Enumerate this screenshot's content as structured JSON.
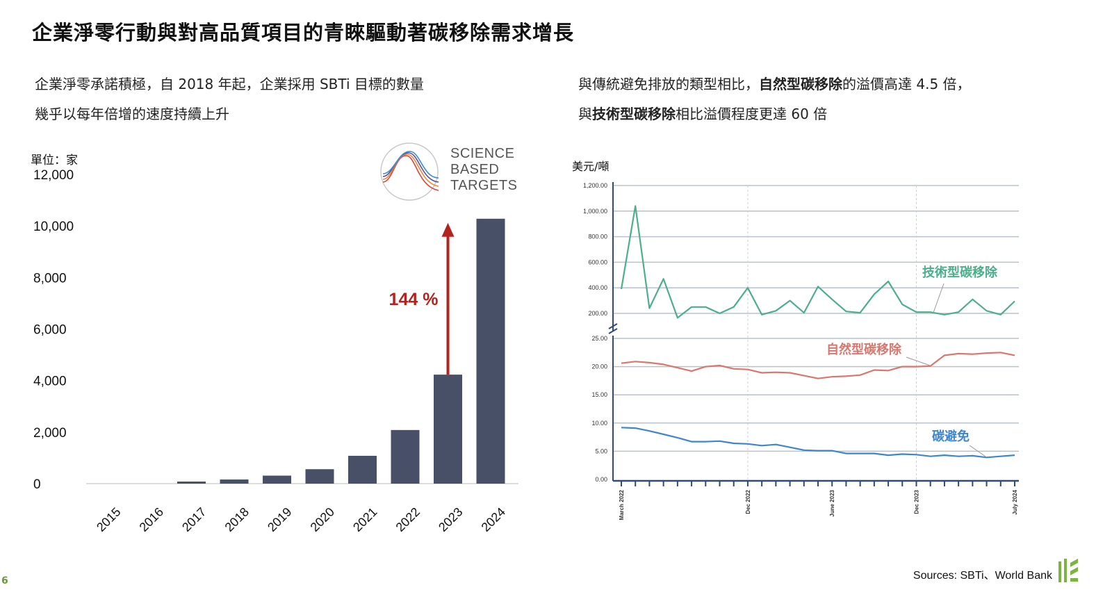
{
  "title": "企業淨零行動與對高品質項目的青睞驅動著碳移除需求增長",
  "left_text": {
    "line1": "企業淨零承諾積極，自 2018 年起，企業採用 SBTi 目標的數量",
    "line2": "幾乎以每年倍增的速度持續上升"
  },
  "right_text": {
    "l1_a": "與傳統避免排放的類型相比，",
    "l1_b": "自然型碳移除",
    "l1_c": "的溢價高達 4.5 倍，",
    "l2_a": "與",
    "l2_b": "技術型碳移除",
    "l2_c": "相比溢價程度更達 60 倍"
  },
  "logo": {
    "line1": "SCIENCE",
    "line2": "BASED",
    "line3": "TARGETS"
  },
  "sources": "Sources: SBTi、World Bank",
  "page_number": "6",
  "colors": {
    "bar": "#475066",
    "arrow": "#b5221e",
    "tech": "#4cae8a",
    "nature": "#d9776e",
    "avoid": "#3d86cf",
    "grid": "#b9c2cc",
    "axis": "#2f4a75"
  },
  "chart_data": [
    {
      "type": "bar",
      "unit_label": "單位：家",
      "categories": [
        "2015",
        "2016",
        "2017",
        "2018",
        "2019",
        "2020",
        "2021",
        "2022",
        "2023",
        "2024"
      ],
      "values": [
        0,
        0,
        80,
        160,
        310,
        560,
        1080,
        2080,
        4230,
        10280
      ],
      "ylim": [
        0,
        12000
      ],
      "yticks": [
        "0",
        "2,000",
        "4,000",
        "6,000",
        "8,000",
        "10,000",
        "12,000"
      ],
      "annotation": "144 %",
      "grid": false
    },
    {
      "type": "line",
      "unit_label": "美元/噸",
      "x_labels": [
        "March 2022",
        "Dec 2022",
        "June 2023",
        "Dec 2023",
        "July 2024"
      ],
      "upper_panel": {
        "ylim": [
          200,
          1200
        ],
        "yticks": [
          "200.00",
          "400.00",
          "600.00",
          "800.00",
          "1,000.00",
          "1,200.00"
        ],
        "series": [
          {
            "name": "技術型碳移除",
            "values": [
              390,
              1040,
              240,
              470,
              165,
              250,
              250,
              200,
              250,
              400,
              190,
              220,
              300,
              205,
              410,
              310,
              215,
              205,
              350,
              450,
              270,
              210,
              210,
              190,
              210,
              310,
              220,
              190,
              295
            ]
          }
        ]
      },
      "lower_panel": {
        "ylim": [
          0,
          25
        ],
        "yticks": [
          "0.00",
          "5.00",
          "10.00",
          "15.00",
          "20.00",
          "25.00"
        ],
        "series": [
          {
            "name": "自然型碳移除",
            "values": [
              20.6,
              20.9,
              20.7,
              20.4,
              19.8,
              19.2,
              20.0,
              20.2,
              19.6,
              19.5,
              18.9,
              19.0,
              18.9,
              18.4,
              17.9,
              18.2,
              18.3,
              18.5,
              19.4,
              19.3,
              20.0,
              20.0,
              20.1,
              22.0,
              22.3,
              22.2,
              22.4,
              22.5,
              22.0
            ]
          },
          {
            "name": "碳避免",
            "values": [
              9.2,
              9.1,
              8.6,
              8.0,
              7.4,
              6.7,
              6.7,
              6.8,
              6.4,
              6.3,
              6.0,
              6.2,
              5.7,
              5.2,
              5.1,
              5.1,
              4.6,
              4.6,
              4.6,
              4.3,
              4.5,
              4.4,
              4.1,
              4.3,
              4.1,
              4.2,
              3.9,
              4.1,
              4.3
            ]
          }
        ]
      },
      "grid": true
    }
  ]
}
